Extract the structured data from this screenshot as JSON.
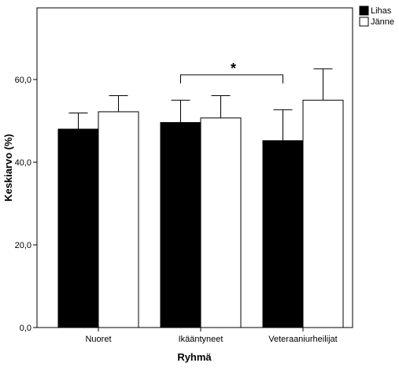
{
  "chart_data": {
    "type": "bar",
    "categories": [
      "Nuoret",
      "Ikääntyneet",
      "Veteraaniurheilijat"
    ],
    "series": [
      {
        "name": "Lihas",
        "color": "#000000",
        "values": [
          48.0,
          49.6,
          45.2
        ],
        "error_upper": [
          51.9,
          55.0,
          52.7
        ]
      },
      {
        "name": "Jänne",
        "color": "#ffffff",
        "values": [
          52.2,
          50.7,
          55.0
        ],
        "error_upper": [
          56.1,
          56.1,
          62.6
        ]
      }
    ],
    "xlabel": "Ryhmä",
    "ylabel": "Keskiarvo (%)",
    "ylim": [
      0,
      75
    ],
    "yticks": [
      "0,0",
      "20,0",
      "40,0",
      "60,0"
    ],
    "grid": false,
    "legend_position": "top-right",
    "annotation": {
      "text": "*",
      "from_category": "Ikääntyneet",
      "to_category": "Veteraaniurheilijat"
    }
  }
}
